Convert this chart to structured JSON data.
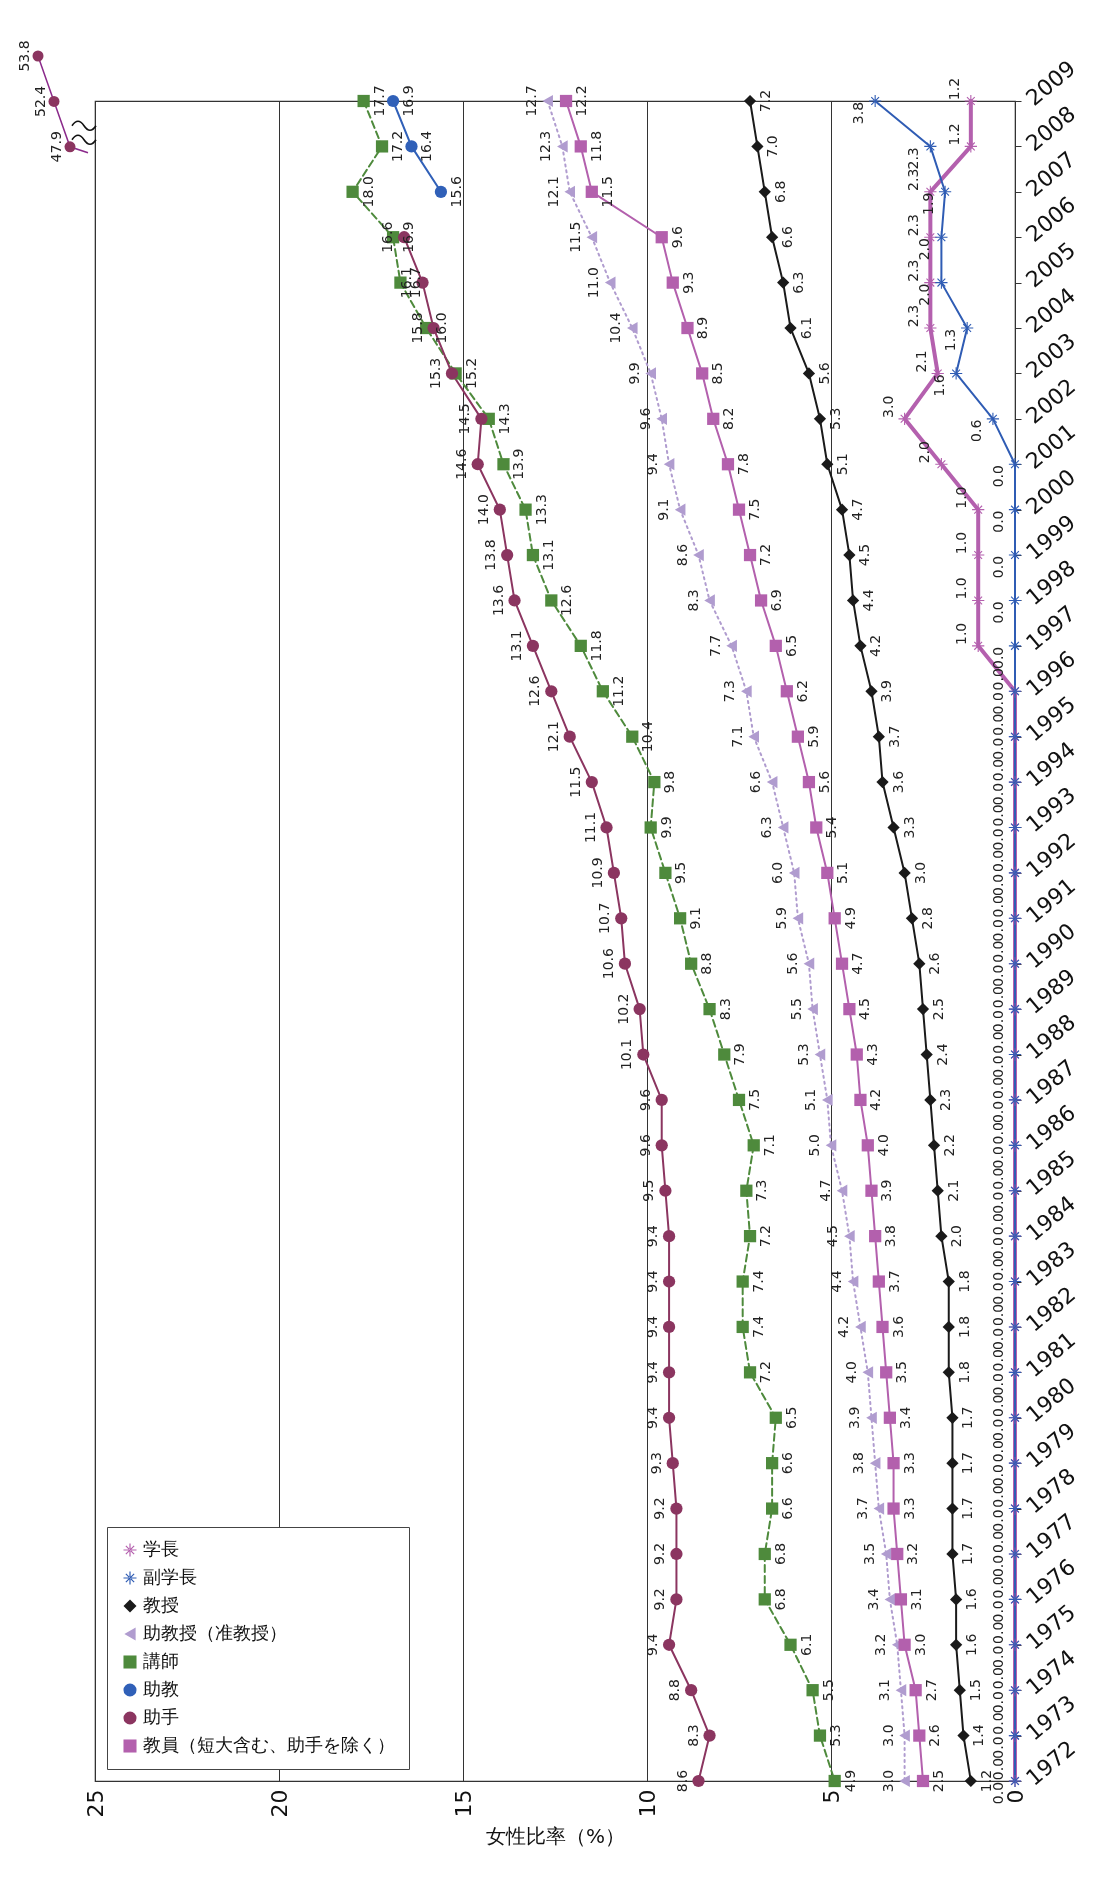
{
  "chart_data": {
    "type": "line",
    "orientation": "horizontal",
    "categories": [
      "2009",
      "2008",
      "2007",
      "2006",
      "2005",
      "2004",
      "2003",
      "2002",
      "2001",
      "2000",
      "1999",
      "1998",
      "1997",
      "1996",
      "1995",
      "1994",
      "1993",
      "1992",
      "1991",
      "1990",
      "1989",
      "1988",
      "1987",
      "1986",
      "1985",
      "1984",
      "1983",
      "1982",
      "1981",
      "1980",
      "1979",
      "1978",
      "1977",
      "1976",
      "1975",
      "1974",
      "1973",
      "1972"
    ],
    "xlabel": "女性比率（%）",
    "xlim": [
      25,
      0
    ],
    "xticks": [
      25,
      20,
      15,
      10,
      5,
      0
    ],
    "grid": "x",
    "legend": "bottom left",
    "annotations": [
      "53.8",
      "52.4",
      "47.9"
    ],
    "series": [
      {
        "name": "学長",
        "color": "#b460ae",
        "marker": "star",
        "line_style": "solid",
        "values": [
          1.2,
          1.2,
          2.3,
          2.3,
          2.3,
          2.3,
          2.1,
          3.0,
          2.0,
          1.0,
          1.0,
          1.0,
          1.0,
          0.0,
          0.0,
          0.0,
          0.0,
          0.0,
          0.0,
          0.0,
          0.0,
          0.0,
          0.0,
          0.0,
          0.0,
          0.0,
          0.0,
          0.0,
          0.0,
          0.0,
          0.0,
          0.0,
          0.0,
          0.0,
          0.0,
          0.0,
          0.0,
          0.0
        ],
        "value_labels": [
          "1.2",
          "1.2",
          "2.3",
          "2.3",
          "2.3",
          "2.3",
          "2.1",
          "3.0",
          "2.0",
          "1.0",
          "1.0",
          "1.0",
          "1.0",
          "0.0",
          "0.0",
          "0.0",
          "0.0",
          "0.0",
          "0.0",
          "0.0",
          "0.0",
          "0.0",
          "0.0",
          "0.0",
          "0.0",
          "0.0",
          "0.0",
          "0.0",
          "0.0",
          "0.0",
          "0.0",
          "0.0",
          "0.0",
          "0.0",
          "0.0",
          "0.0",
          "0.0",
          "0.0"
        ]
      },
      {
        "name": "副学長",
        "color": "#2f5cb4",
        "marker": "star",
        "line_style": "solid",
        "values": [
          3.8,
          2.3,
          1.9,
          2.0,
          2.0,
          1.3,
          1.6,
          0.6,
          0.0,
          0.0,
          0.0,
          0.0,
          0.0,
          0.0,
          0.0,
          0.0,
          0.0,
          0.0,
          0.0,
          0.0,
          0.0,
          0.0,
          0.0,
          0.0,
          0.0,
          0.0,
          0.0,
          0.0,
          0.0,
          0.0,
          0.0,
          0.0,
          0.0,
          0.0,
          0.0,
          0.0,
          0.0,
          0.0
        ],
        "value_labels": [
          "3.8",
          "2.3",
          "1.9",
          "2.0",
          "2.0",
          "1.3",
          "1.6",
          "0.6",
          "0.0",
          "0.0",
          "0.0",
          "0.0",
          "0.0",
          "0.0",
          "0.0",
          "0.0",
          "0.0",
          "0.0",
          "0.0",
          "0.0",
          "0.0",
          "0.0",
          "0.0",
          "0.0",
          "0.0",
          "0.0",
          "0.0",
          "0.0",
          "0.0",
          "0.0",
          "0.0",
          "0.0",
          "0.0",
          "0.0",
          "0.0",
          "0.0",
          "0.0",
          "0.0"
        ]
      },
      {
        "name": "教授",
        "color": "#1a1a1a",
        "marker": "diamond",
        "line_style": "solid",
        "values": [
          7.2,
          7.0,
          6.8,
          6.6,
          6.3,
          6.1,
          5.6,
          5.3,
          5.1,
          4.7,
          4.5,
          4.4,
          4.2,
          3.9,
          3.7,
          3.6,
          3.3,
          3.0,
          2.8,
          2.6,
          2.5,
          2.4,
          2.3,
          2.2,
          2.1,
          2.0,
          1.8,
          1.8,
          1.8,
          1.7,
          1.7,
          1.7,
          1.7,
          1.6,
          1.6,
          1.5,
          1.4,
          1.2
        ],
        "value_labels": [
          "7.2",
          "7.0",
          "6.8",
          "6.6",
          "6.3",
          "6.1",
          "5.6",
          "5.3",
          "5.1",
          "4.7",
          "4.5",
          "4.4",
          "4.2",
          "3.9",
          "3.7",
          "3.6",
          "3.3",
          "3.0",
          "2.8",
          "2.6",
          "2.5",
          "2.4",
          "2.3",
          "2.2",
          "2.1",
          "2.0",
          "1.8",
          "1.8",
          "1.8",
          "1.7",
          "1.7",
          "1.7",
          "1.7",
          "1.6",
          "1.6",
          "1.5",
          "1.4",
          "1.2"
        ]
      },
      {
        "name": "助教授（准教授）",
        "color": "#b09ccf",
        "marker": "triangle",
        "line_style": "dotted",
        "values": [
          12.7,
          12.3,
          12.1,
          11.5,
          11.0,
          10.4,
          9.9,
          9.6,
          9.4,
          9.1,
          8.6,
          8.3,
          7.7,
          7.3,
          7.1,
          6.6,
          6.3,
          6.0,
          5.9,
          5.6,
          5.5,
          5.3,
          5.1,
          5.0,
          4.7,
          4.5,
          4.4,
          4.2,
          4.0,
          3.9,
          3.8,
          3.7,
          3.5,
          3.4,
          3.2,
          3.1,
          3.0,
          3.0
        ],
        "value_labels": [
          "12.7",
          "12.3",
          "12.1",
          "11.5",
          "11.0",
          "10.4",
          "9.9",
          "9.6",
          "9.4",
          "9.1",
          "8.6",
          "8.3",
          "7.7",
          "7.3",
          "7.1",
          "6.6",
          "6.3",
          "6.0",
          "5.9",
          "5.6",
          "5.5",
          "5.3",
          "5.1",
          "5.0",
          "4.7",
          "4.5",
          "4.4",
          "4.2",
          "4.0",
          "3.9",
          "3.8",
          "3.7",
          "3.5",
          "3.4",
          "3.2",
          "3.1",
          "3.0",
          "3.0"
        ]
      },
      {
        "name": "講師",
        "color": "#4e8a3c",
        "marker": "square",
        "line_style": "dashed",
        "values": [
          17.7,
          17.2,
          18.0,
          16.9,
          16.7,
          16.0,
          15.2,
          14.3,
          13.9,
          13.3,
          13.1,
          12.6,
          11.8,
          11.2,
          10.4,
          9.8,
          9.9,
          9.5,
          9.1,
          8.8,
          8.3,
          7.9,
          7.5,
          7.1,
          7.3,
          7.2,
          7.4,
          7.4,
          7.2,
          6.5,
          6.6,
          6.6,
          6.8,
          6.8,
          6.1,
          5.5,
          5.3,
          4.9
        ],
        "value_labels": [
          "17.7",
          "17.2",
          "18.0",
          "16.9",
          "16.7",
          "16.0",
          "15.2",
          "14.3",
          "13.9",
          "13.3",
          "13.1",
          "12.6",
          "11.8",
          "11.2",
          "10.4",
          "9.8",
          "9.9",
          "9.5",
          "9.1",
          "8.8",
          "8.3",
          "7.9",
          "7.5",
          "7.1",
          "7.3",
          "7.2",
          "7.4",
          "7.4",
          "7.2",
          "6.5",
          "6.6",
          "6.6",
          "6.8",
          "6.8",
          "6.1",
          "5.5",
          "5.3",
          "4.9"
        ]
      },
      {
        "name": "助教",
        "color": "#3060b8",
        "marker": "circle",
        "line_style": "solid",
        "values": [
          16.9,
          16.4,
          15.6,
          null,
          null,
          null,
          null,
          null,
          null,
          null,
          null,
          null,
          null,
          null,
          null,
          null,
          null,
          null,
          null,
          null,
          null,
          null,
          null,
          null,
          null,
          null,
          null,
          null,
          null,
          null,
          null,
          null,
          null,
          null,
          null,
          null,
          null,
          null
        ],
        "value_labels": [
          "16.9",
          "16.4",
          "15.6",
          null,
          null,
          null,
          null,
          null,
          null,
          null,
          null,
          null,
          null,
          null,
          null,
          null,
          null,
          null,
          null,
          null,
          null,
          null,
          null,
          null,
          null,
          null,
          null,
          null,
          null,
          null,
          null,
          null,
          null,
          null,
          null,
          null,
          null,
          null
        ]
      },
      {
        "name": "助手",
        "color": "#8b3560",
        "marker": "circle",
        "line_style": "solid",
        "values": [
          null,
          null,
          null,
          16.6,
          16.1,
          15.8,
          15.3,
          14.5,
          14.6,
          14.0,
          13.8,
          13.6,
          13.1,
          12.6,
          12.1,
          11.5,
          11.1,
          10.9,
          10.7,
          10.6,
          10.2,
          10.1,
          9.6,
          9.6,
          9.5,
          9.4,
          9.4,
          9.4,
          9.4,
          9.4,
          9.3,
          9.2,
          9.2,
          9.2,
          9.4,
          8.8,
          8.3,
          8.6
        ],
        "value_labels": [
          null,
          null,
          null,
          "16.6",
          "16.1",
          "15.8",
          "15.3",
          "14.5",
          "14.6",
          "14.0",
          "13.8",
          "13.6",
          "13.1",
          "12.6",
          "12.1",
          "11.5",
          "11.1",
          "10.9",
          "10.7",
          "10.6",
          "10.2",
          "10.1",
          "9.6",
          "9.6",
          "9.5",
          "9.4",
          "9.4",
          "9.4",
          "9.4",
          "9.4",
          "9.3",
          "9.2",
          "9.2",
          "9.2",
          "9.4",
          "8.8",
          "8.3",
          "8.6"
        ]
      },
      {
        "name": "教員（短大含む、助手を除く）",
        "color": "#b360ad",
        "marker": "square",
        "line_style": "solid",
        "values": [
          12.2,
          11.8,
          11.5,
          9.6,
          9.3,
          8.9,
          8.5,
          8.2,
          7.8,
          7.5,
          7.2,
          6.9,
          6.5,
          6.2,
          5.9,
          5.6,
          5.4,
          5.1,
          4.9,
          4.7,
          4.5,
          4.3,
          4.2,
          4.0,
          3.9,
          3.8,
          3.7,
          3.6,
          3.5,
          3.4,
          3.3,
          3.3,
          3.2,
          3.1,
          3.0,
          2.7,
          2.6,
          2.5
        ],
        "value_labels": [
          "12.2",
          "11.8",
          "11.5",
          "9.6",
          "9.3",
          "8.9",
          "8.5",
          "8.2",
          "7.8",
          "7.5",
          "7.2",
          "6.9",
          "6.5",
          "6.2",
          "5.9",
          "5.6",
          "5.4",
          "5.1",
          "4.9",
          "4.7",
          "4.5",
          "4.3",
          "4.2",
          "4.0",
          "3.9",
          "3.8",
          "3.7",
          "3.6",
          "3.5",
          "3.4",
          "3.3",
          "3.3",
          "3.2",
          "3.1",
          "3.0",
          "2.7",
          "2.6",
          "2.5"
        ]
      }
    ]
  }
}
